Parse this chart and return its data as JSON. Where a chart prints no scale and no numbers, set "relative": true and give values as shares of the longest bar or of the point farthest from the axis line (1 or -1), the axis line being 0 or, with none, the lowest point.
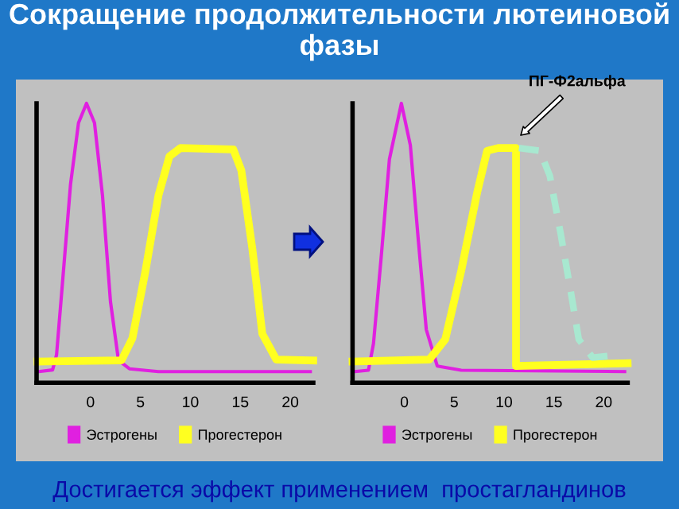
{
  "chart_data": [
    {
      "type": "line",
      "title": "Сокращение продолжительности лютеиновой фазы",
      "relative": true,
      "xlim": [
        -5.4,
        22.3
      ],
      "xticks": [
        0,
        5,
        10,
        15,
        20
      ],
      "legend": "bottom",
      "series": [
        {
          "name": "Эстрогены",
          "color": "#e020e0",
          "x": [
            -5.2,
            -3.8,
            -3.4,
            -2.8,
            -2.0,
            -1.2,
            -0.4,
            0.4,
            1.2,
            2.0,
            2.8,
            3.9,
            6.8,
            22.0
          ],
          "values": [
            0.04,
            0.046,
            0.1,
            0.36,
            0.71,
            0.93,
            1.0,
            0.93,
            0.67,
            0.29,
            0.08,
            0.05,
            0.04,
            0.04
          ]
        },
        {
          "name": "Прогестерон",
          "color": "#ffff20",
          "x": [
            -5.3,
            3.1,
            4.2,
            5.5,
            6.8,
            7.9,
            9.0,
            14.3,
            15.1,
            16.2,
            17.2,
            18.6,
            22.3
          ],
          "values": [
            0.076,
            0.08,
            0.16,
            0.4,
            0.67,
            0.81,
            0.84,
            0.835,
            0.76,
            0.48,
            0.175,
            0.083,
            0.08
          ]
        }
      ]
    },
    {
      "type": "line",
      "relative": true,
      "xlim": [
        -5.2,
        22.4
      ],
      "xticks": [
        0,
        5,
        10,
        15,
        20
      ],
      "legend": "bottom",
      "annotations": [
        "ПГ-Ф2альфа",
        "Достигается эффект применением  простагландинов"
      ],
      "series": [
        {
          "name": "Эстрогены",
          "color": "#e020e0",
          "x": [
            -5.0,
            -3.6,
            -3.1,
            -2.3,
            -1.5,
            -0.3,
            0.6,
            1.4,
            2.2,
            3.3,
            5.7,
            22.1
          ],
          "values": [
            0.04,
            0.045,
            0.14,
            0.46,
            0.8,
            1.0,
            0.85,
            0.51,
            0.19,
            0.06,
            0.045,
            0.04
          ]
        },
        {
          "name": "Прогестерон",
          "color": "#ffff20",
          "x": [
            -5.2,
            2.5,
            4.1,
            5.7,
            7.3,
            8.3,
            9.4,
            11.2,
            11.2,
            22.4
          ],
          "values": [
            0.076,
            0.083,
            0.155,
            0.4,
            0.68,
            0.83,
            0.84,
            0.84,
            0.06,
            0.07
          ]
        },
        {
          "color": "#a8e8d0",
          "line_style": "dashed",
          "x": [
            11.5,
            13.6,
            14.6,
            15.7,
            16.7,
            17.5,
            18.9,
            21.6
          ],
          "values": [
            0.84,
            0.83,
            0.74,
            0.53,
            0.325,
            0.155,
            0.09,
            0.1
          ]
        }
      ]
    }
  ]
}
